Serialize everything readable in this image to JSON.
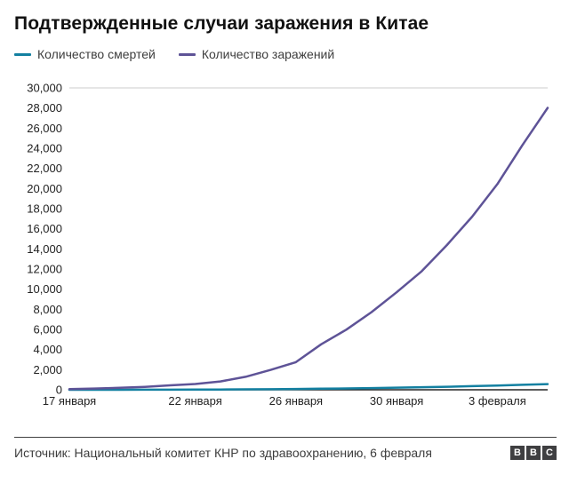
{
  "title": "Подтвержденные случаи заражения в Китае",
  "legend": [
    {
      "label": "Количество смертей",
      "color": "#1380a1"
    },
    {
      "label": "Количество заражений",
      "color": "#5e5397"
    }
  ],
  "footer": {
    "source": "Источник: Национальный комитет КНР по здравоохранению, 6 февраля",
    "logo": [
      "B",
      "B",
      "C"
    ]
  },
  "chart_data": {
    "type": "line",
    "title": "Подтвержденные случаи заражения в Китае",
    "xlabel": "",
    "ylabel": "",
    "ylim": [
      0,
      30000
    ],
    "y_tick_step": 2000,
    "grid": "top boundary line only, dark zero axis",
    "legend_position": "top",
    "x_tick_labels": [
      {
        "index": 0,
        "label": "17 января"
      },
      {
        "index": 5,
        "label": "22 января"
      },
      {
        "index": 9,
        "label": "26 января"
      },
      {
        "index": 13,
        "label": "30 января"
      },
      {
        "index": 17,
        "label": "3 февраля"
      }
    ],
    "x_description": "daily points from 17 January to 5 February",
    "series": [
      {
        "name": "Количество смертей",
        "color": "#1380a1",
        "values": [
          2,
          3,
          3,
          6,
          9,
          17,
          25,
          41,
          56,
          80,
          106,
          132,
          170,
          213,
          259,
          304,
          361,
          425,
          490,
          563
        ]
      },
      {
        "name": "Количество заражений",
        "color": "#5e5397",
        "values": [
          62,
          121,
          198,
          291,
          440,
          571,
          830,
          1287,
          1975,
          2744,
          4515,
          5974,
          7711,
          9692,
          11791,
          14380,
          17205,
          20438,
          24324,
          28018
        ]
      }
    ]
  }
}
